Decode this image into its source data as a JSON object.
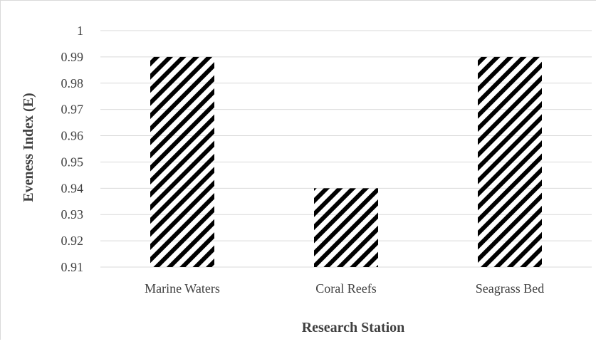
{
  "chart_data": {
    "type": "bar",
    "title": "",
    "xlabel": "Research Station",
    "ylabel": "Eveness Index (E)",
    "categories": [
      "Marine Waters",
      "Coral Reefs",
      "Seagrass Bed"
    ],
    "values": [
      0.99,
      0.94,
      0.99
    ],
    "ylim": [
      0.91,
      1.0
    ],
    "yticks": [
      "0.91",
      "0.92",
      "0.93",
      "0.94",
      "0.95",
      "0.96",
      "0.97",
      "0.98",
      "0.99",
      "1"
    ],
    "grid": true,
    "legend": "none",
    "bar_fill": "diagonal-stripes",
    "colors": {
      "bar_pattern": "#000000",
      "gridline": "#d9d9d9",
      "text": "#404040"
    }
  }
}
